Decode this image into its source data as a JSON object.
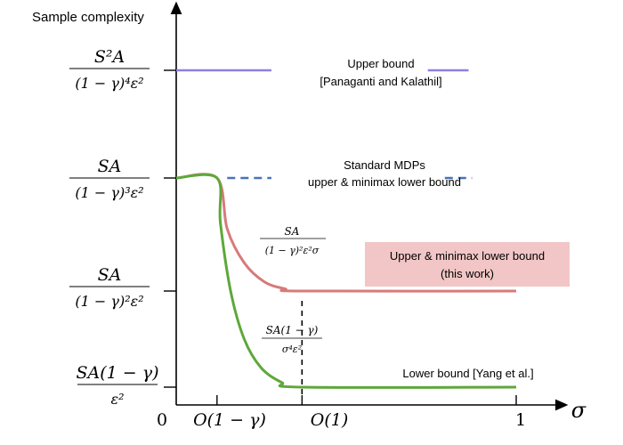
{
  "chart_data": {
    "type": "line",
    "title": "",
    "ylabel": "Sample complexity",
    "xlabel": "σ",
    "x_ticks": [
      {
        "x": 0,
        "label": "0"
      },
      {
        "x": 0.12,
        "label": "O(1 − γ)"
      },
      {
        "x": 0.37,
        "label": "O(1)"
      },
      {
        "x": 1,
        "label": "1"
      }
    ],
    "y_ticks": [
      {
        "level": 4,
        "num": "S²A",
        "den": "(1 − γ)⁴ε²"
      },
      {
        "level": 3,
        "num": "SA",
        "den": "(1 − γ)³ε²"
      },
      {
        "level": 2,
        "num": "SA",
        "den": "(1 − γ)²ε²"
      },
      {
        "level": 1,
        "num": "SA(1 − γ)",
        "den": "ε²"
      }
    ],
    "series": [
      {
        "name": "Upper bound [Panaganti and Kalathil]",
        "label_lines": [
          "Upper bound",
          "[Panaganti and Kalathil]"
        ],
        "color": "#8f7fe0",
        "style": "solid",
        "segments": [
          [
            [
              0,
              4
            ],
            [
              0.28,
              4
            ]
          ],
          [
            [
              0.74,
              4
            ],
            [
              0.86,
              4
            ]
          ]
        ]
      },
      {
        "name": "Standard MDPs upper & minimax lower bound",
        "label_lines": [
          "Standard MDPs",
          "upper & minimax lower bound"
        ],
        "color": "#4a72b8",
        "style": "dashed",
        "segments": [
          [
            [
              0.15,
              3
            ],
            [
              0.28,
              3
            ]
          ],
          [
            [
              0.79,
              3
            ],
            [
              0.87,
              3
            ]
          ]
        ]
      },
      {
        "name": "Upper & minimax lower bound (this work)",
        "label_lines": [
          "Upper & minimax lower bound",
          "(this work)"
        ],
        "color": "#d77a7a",
        "style": "solid",
        "curve_label": {
          "num": "SA",
          "den": "(1 − γ)²ε²σ"
        },
        "points": [
          [
            0,
            3
          ],
          [
            0.12,
            3
          ],
          [
            0.15,
            2.55
          ],
          [
            0.2,
            2.25
          ],
          [
            0.26,
            2.08
          ],
          [
            0.32,
            2.02
          ],
          [
            0.37,
            2.0
          ],
          [
            1,
            2.0
          ]
        ]
      },
      {
        "name": "Lower bound [Yang et al.]",
        "color": "#5da83a",
        "style": "solid",
        "curve_label": {
          "num": "SA(1 − γ)",
          "den": "σ⁴ε²"
        },
        "points": [
          [
            0,
            3
          ],
          [
            0.12,
            3
          ],
          [
            0.13,
            2.6
          ],
          [
            0.16,
            2.0
          ],
          [
            0.2,
            1.5
          ],
          [
            0.25,
            1.2
          ],
          [
            0.31,
            1.05
          ],
          [
            0.37,
            1.0
          ],
          [
            1,
            1.0
          ]
        ]
      }
    ],
    "annotations": [
      "dashed vertical line at O(1)"
    ],
    "grid": false,
    "legend": "inline labels"
  }
}
